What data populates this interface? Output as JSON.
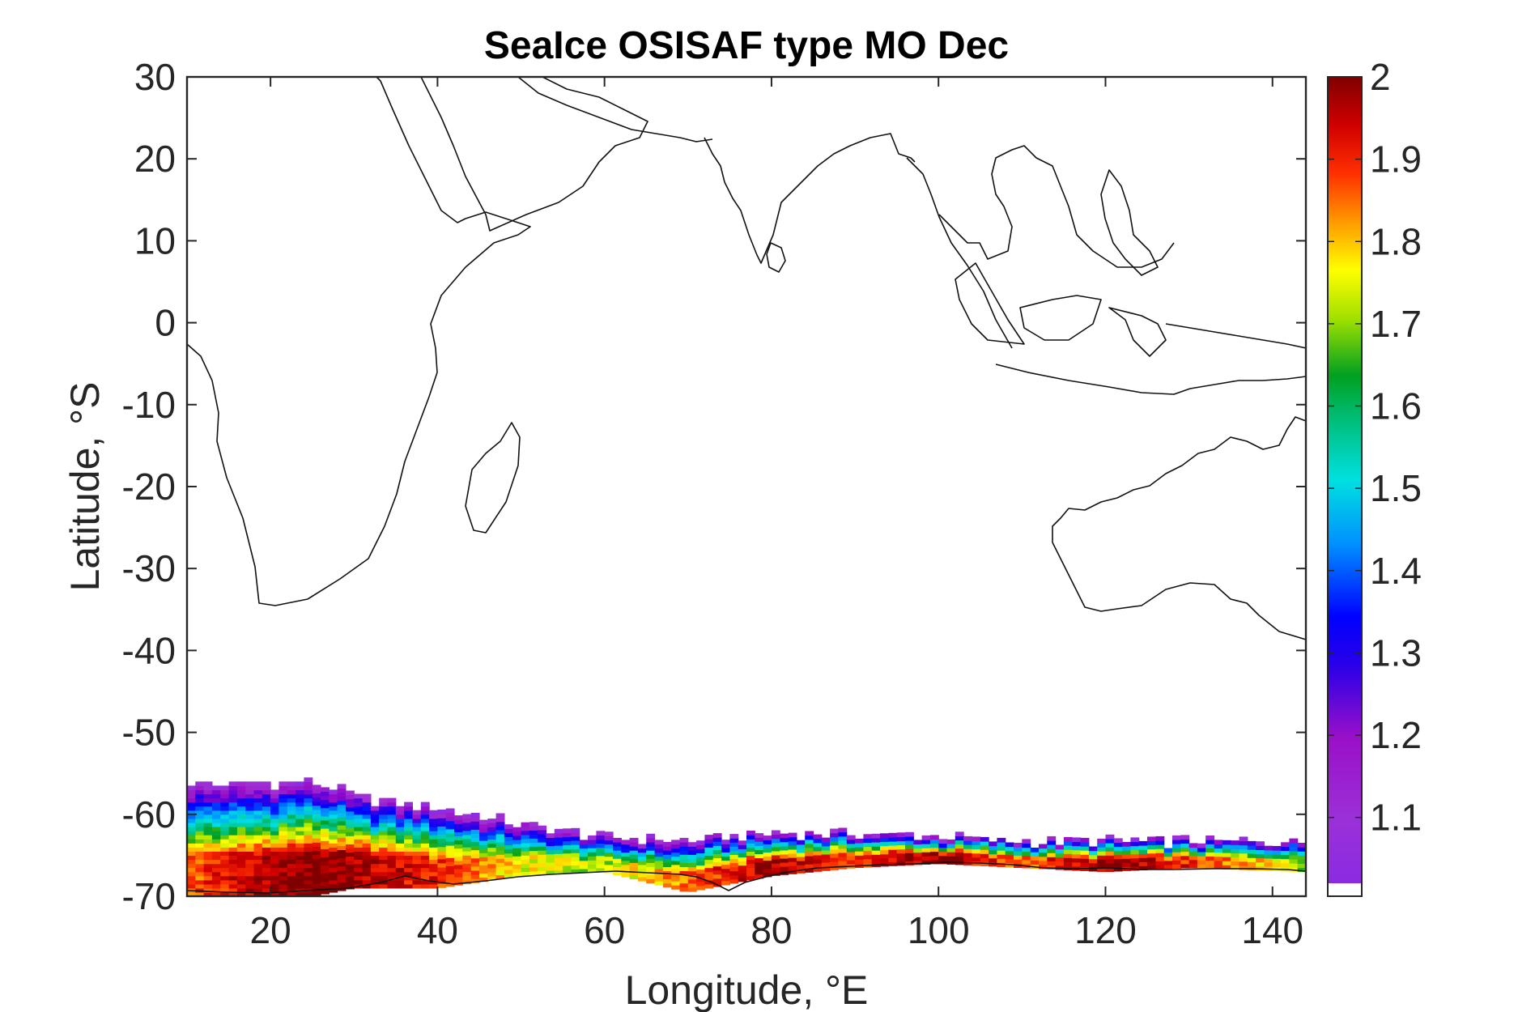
{
  "chart_data": {
    "type": "heatmap",
    "title": "SeaIce OSISAF type MO Dec",
    "xlabel": "Longitude, °E",
    "ylabel": "Latitude, °S",
    "xlim": [
      10,
      144
    ],
    "ylim": [
      -70,
      30
    ],
    "x_ticks": [
      "20",
      "40",
      "60",
      "80",
      "100",
      "120",
      "140"
    ],
    "y_ticks": [
      "30",
      "20",
      "10",
      "0",
      "-10",
      "-20",
      "-30",
      "-40",
      "-50",
      "-60",
      "-70"
    ],
    "colorbar": {
      "range": [
        1.02,
        2.0
      ],
      "ticks": [
        "2",
        "1.9",
        "1.8",
        "1.7",
        "1.6",
        "1.5",
        "1.4",
        "1.3",
        "1.2",
        "1.1"
      ],
      "colormap": "jet-like purple-to-darkred"
    },
    "grid": false,
    "ice_band": {
      "description_lat_range": [
        -70,
        -56
      ],
      "profile": [
        {
          "lon": 10,
          "north_edge": -56.5,
          "south_edge": -70,
          "core_value": 1.85
        },
        {
          "lon": 20,
          "north_edge": -56.5,
          "south_edge": -70,
          "core_value": 1.98
        },
        {
          "lon": 25,
          "north_edge": -56,
          "south_edge": -70,
          "core_value": 2.0
        },
        {
          "lon": 30,
          "north_edge": -58,
          "south_edge": -69,
          "core_value": 1.98
        },
        {
          "lon": 40,
          "north_edge": -59.5,
          "south_edge": -69,
          "core_value": 1.9
        },
        {
          "lon": 50,
          "north_edge": -61.5,
          "south_edge": -67.5,
          "core_value": 1.75
        },
        {
          "lon": 60,
          "north_edge": -63,
          "south_edge": -67,
          "core_value": 1.7
        },
        {
          "lon": 70,
          "north_edge": -63.5,
          "south_edge": -69.5,
          "core_value": 1.85
        },
        {
          "lon": 80,
          "north_edge": -62.5,
          "south_edge": -67.5,
          "core_value": 1.97
        },
        {
          "lon": 90,
          "north_edge": -62.5,
          "south_edge": -66.5,
          "core_value": 1.9
        },
        {
          "lon": 100,
          "north_edge": -63,
          "south_edge": -66,
          "core_value": 1.98
        },
        {
          "lon": 110,
          "north_edge": -63.5,
          "south_edge": -66.5,
          "core_value": 1.85
        },
        {
          "lon": 120,
          "north_edge": -63.5,
          "south_edge": -67,
          "core_value": 1.98
        },
        {
          "lon": 130,
          "north_edge": -63.5,
          "south_edge": -66.5,
          "core_value": 1.9
        },
        {
          "lon": 144,
          "north_edge": -63.5,
          "south_edge": -67,
          "core_value": 1.7
        }
      ]
    }
  }
}
